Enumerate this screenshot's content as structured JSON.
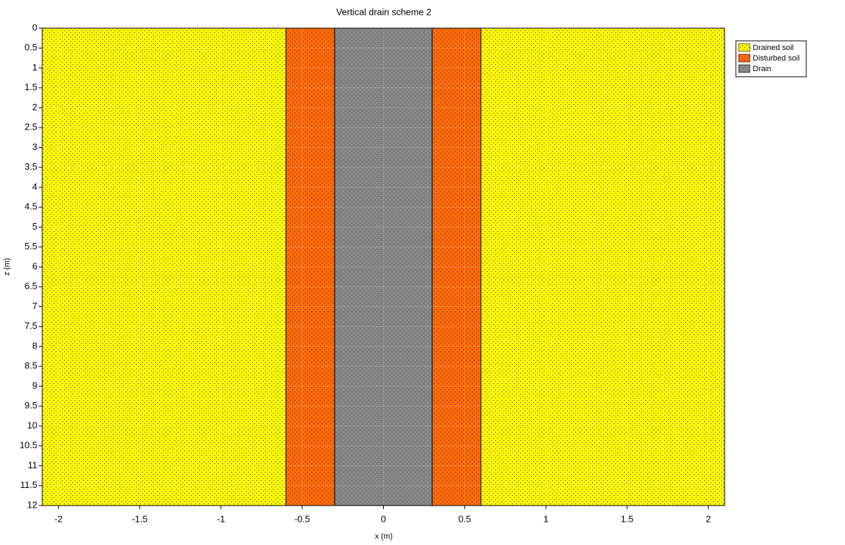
{
  "chart_data": {
    "type": "band",
    "title": "Vertical drain scheme 2",
    "x_label": "x (m)",
    "y_label": "z (m)",
    "xlim": [
      -2.1,
      2.1
    ],
    "xticks": [
      -2,
      -1.5,
      -1,
      -0.5,
      0,
      0.5,
      1,
      1.5,
      2
    ],
    "ylim": [
      0,
      12
    ],
    "y_inverted": true,
    "yticks": [
      0,
      0.5,
      1,
      1.5,
      2,
      2.5,
      3,
      3.5,
      4,
      4.5,
      5,
      5.5,
      6,
      6.5,
      7,
      7.5,
      8,
      8.5,
      9,
      9.5,
      10,
      10.5,
      11,
      11.5,
      12
    ],
    "grid": true,
    "legend": "outside-top-right",
    "series": [
      {
        "name": "Drained soil",
        "color": "#ffff00",
        "x_ranges": [
          [
            -2.1,
            -0.6
          ],
          [
            0.6,
            2.1
          ]
        ],
        "z_range": [
          0,
          12
        ]
      },
      {
        "name": "Disturbed soil",
        "color": "#ff6a00",
        "x_ranges": [
          [
            -0.6,
            -0.3
          ],
          [
            0.3,
            0.6
          ]
        ],
        "z_range": [
          0,
          12
        ]
      },
      {
        "name": "Drain",
        "color": "#808080",
        "x_ranges": [
          [
            -0.3,
            0.3
          ]
        ],
        "z_range": [
          0,
          12
        ]
      }
    ]
  }
}
